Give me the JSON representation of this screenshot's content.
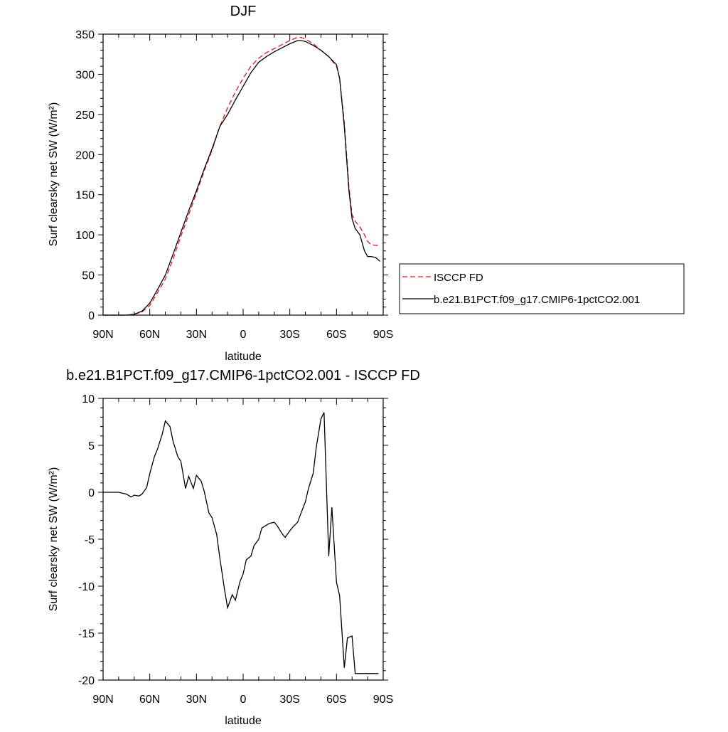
{
  "chart_data": [
    {
      "type": "line",
      "title": "DJF",
      "xlabel": "latitude",
      "ylabel": "Surf clearsky net SW (W/m²)",
      "xlim": [
        -90,
        90
      ],
      "ylim": [
        0,
        350
      ],
      "x_ticks": [
        -90,
        -60,
        -30,
        0,
        30,
        60,
        90
      ],
      "x_tick_labels": [
        "90N",
        "60N",
        "30N",
        "0",
        "30S",
        "60S",
        "90S"
      ],
      "y_ticks": [
        0,
        50,
        100,
        150,
        200,
        250,
        300,
        350
      ],
      "y_tick_labels": [
        "0",
        "50",
        "100",
        "150",
        "200",
        "250",
        "300",
        "350"
      ],
      "legend_position": "right",
      "series": [
        {
          "name": "ISCCP FD",
          "color": "#e0151b",
          "dash": "dashed",
          "x": [
            -90,
            -85,
            -80,
            -75,
            -70,
            -65,
            -60,
            -55,
            -50,
            -45,
            -40,
            -35,
            -30,
            -25,
            -20,
            -15,
            -10,
            -5,
            0,
            5,
            10,
            15,
            20,
            25,
            30,
            35,
            37,
            40,
            45,
            50,
            55,
            60,
            62,
            65,
            68,
            70,
            72,
            75,
            78,
            80,
            82,
            85,
            88
          ],
          "y": [
            0,
            0,
            0,
            0,
            1,
            4,
            12,
            28,
            45,
            70,
            98,
            125,
            152,
            180,
            205,
            235,
            258,
            278,
            295,
            310,
            320,
            327,
            332,
            337,
            342,
            346,
            346,
            344,
            338,
            330,
            322,
            310,
            295,
            240,
            160,
            125,
            117,
            110,
            100,
            92,
            88,
            87,
            87
          ]
        },
        {
          "name": "b.e21.B1PCT.f09_g17.CMIP6-1pctCO2.001",
          "color": "#000000",
          "dash": "solid",
          "x": [
            -90,
            -85,
            -80,
            -75,
            -70,
            -65,
            -60,
            -55,
            -50,
            -45,
            -40,
            -35,
            -30,
            -25,
            -20,
            -15,
            -10,
            -5,
            0,
            5,
            10,
            15,
            20,
            25,
            30,
            35,
            37,
            40,
            45,
            50,
            55,
            60,
            62,
            65,
            68,
            70,
            72,
            75,
            78,
            80,
            82,
            85,
            88
          ],
          "y": [
            0,
            0,
            0,
            0,
            1,
            5,
            15,
            32,
            50,
            76,
            103,
            130,
            155,
            182,
            207,
            235,
            250,
            268,
            285,
            302,
            315,
            322,
            328,
            333,
            338,
            342,
            342,
            341,
            336,
            330,
            322,
            312,
            295,
            235,
            155,
            120,
            108,
            100,
            80,
            73,
            73,
            72,
            67
          ]
        }
      ]
    },
    {
      "type": "line",
      "title": "b.e21.B1PCT.f09_g17.CMIP6-1pctCO2.001 - ISCCP FD",
      "xlabel": "latitude",
      "ylabel": "Surf clearsky net SW (W/m²)",
      "xlim": [
        -90,
        90
      ],
      "ylim": [
        -20,
        10
      ],
      "x_ticks": [
        -90,
        -60,
        -30,
        0,
        30,
        60,
        90
      ],
      "x_tick_labels": [
        "90N",
        "60N",
        "30N",
        "0",
        "30S",
        "60S",
        "90S"
      ],
      "y_ticks": [
        -20,
        -15,
        -10,
        -5,
        0,
        5,
        10
      ],
      "y_tick_labels": [
        "-20",
        "-15",
        "-10",
        "-5",
        "0",
        "5",
        "10"
      ],
      "series": [
        {
          "color": "#000000",
          "dash": "solid",
          "x": [
            -90,
            -85,
            -80,
            -75,
            -72,
            -70,
            -67,
            -65,
            -62,
            -60,
            -57,
            -55,
            -52,
            -50,
            -47,
            -45,
            -42,
            -40,
            -37,
            -35,
            -32,
            -30,
            -27,
            -25,
            -22,
            -20,
            -17,
            -15,
            -12,
            -10,
            -7,
            -5,
            -2,
            0,
            2,
            5,
            7,
            10,
            12,
            15,
            17,
            20,
            22,
            25,
            27,
            30,
            32,
            35,
            37,
            40,
            42,
            45,
            47,
            50,
            52,
            55,
            57,
            60,
            62,
            65,
            67,
            70,
            72,
            75,
            77,
            80,
            82,
            85,
            87
          ],
          "y": [
            0,
            0,
            0,
            -0.2,
            -0.5,
            -0.3,
            -0.4,
            -0.2,
            0.5,
            2.0,
            3.8,
            4.6,
            6.2,
            7.6,
            7.0,
            5.4,
            3.8,
            3.3,
            0.4,
            1.7,
            0.4,
            1.8,
            1.2,
            0.1,
            -2.2,
            -2.7,
            -4.5,
            -7.0,
            -10.3,
            -12.3,
            -10.9,
            -11.5,
            -9.5,
            -8.7,
            -7.2,
            -6.8,
            -5.7,
            -5.0,
            -3.8,
            -3.5,
            -3.3,
            -3.2,
            -3.6,
            -4.4,
            -4.8,
            -4.1,
            -3.7,
            -3.2,
            -2.3,
            -1.0,
            0.4,
            2.0,
            4.8,
            7.8,
            8.5,
            -6.8,
            -1.6,
            -9.6,
            -11.0,
            -18.7,
            -15.5,
            -15.3,
            -19.3,
            -19.3,
            -19.3,
            -19.3,
            -19.3,
            -19.3,
            -19.3
          ]
        }
      ]
    }
  ]
}
